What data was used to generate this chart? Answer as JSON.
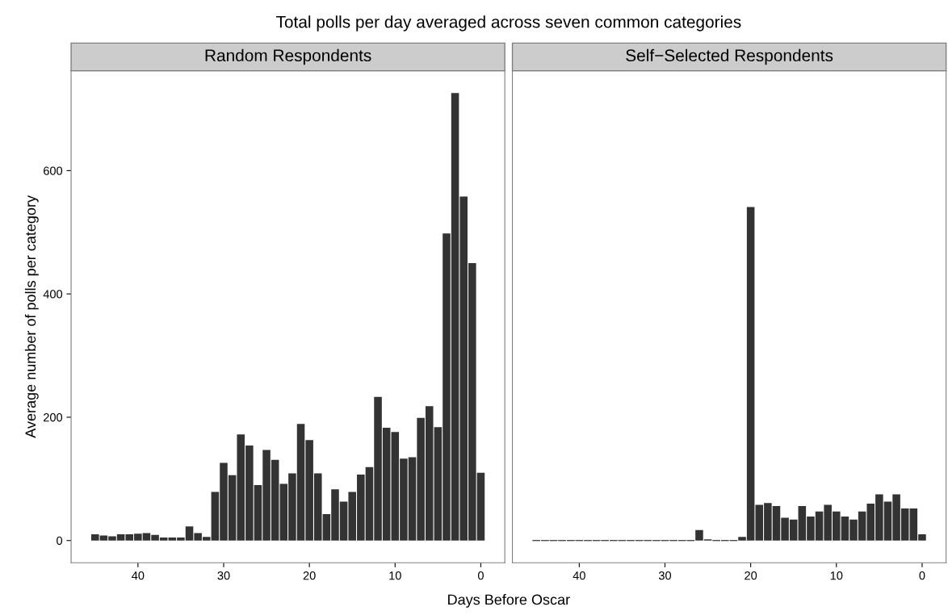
{
  "chart_data": [
    {
      "type": "bar",
      "title": "Random Respondents",
      "annotations": [
        "Total polls per day averaged across seven common categories"
      ],
      "xlabel": "Days Before Oscar",
      "ylabel": "Average number of polls per category",
      "x": [
        45,
        44,
        43,
        42,
        41,
        40,
        39,
        38,
        37,
        36,
        35,
        34,
        33,
        32,
        31,
        30,
        29,
        28,
        27,
        26,
        25,
        24,
        23,
        22,
        21,
        20,
        19,
        18,
        17,
        16,
        15,
        14,
        13,
        12,
        11,
        10,
        9,
        8,
        7,
        6,
        5,
        4,
        3,
        2,
        1,
        0
      ],
      "series": [
        {
          "color": "#333333",
          "values": [
            10,
            8,
            7,
            10,
            10,
            11,
            12,
            9,
            5,
            5,
            5,
            23,
            12,
            6,
            79,
            126,
            106,
            172,
            154,
            90,
            147,
            131,
            92,
            109,
            189,
            163,
            109,
            43,
            83,
            63,
            79,
            107,
            119,
            233,
            183,
            176,
            133,
            135,
            199,
            218,
            184,
            498,
            726,
            558,
            450,
            110
          ]
        }
      ],
      "xlim": [
        47.8,
        -2.8
      ],
      "xticks": [
        40,
        30,
        20,
        10,
        0
      ],
      "ylim": [
        -36,
        762
      ],
      "yticks": [
        0,
        200,
        400,
        600
      ],
      "grid": false
    },
    {
      "type": "bar",
      "title": "Self−Selected Respondents",
      "x": [
        45,
        44,
        43,
        42,
        41,
        40,
        39,
        38,
        37,
        36,
        35,
        34,
        33,
        32,
        31,
        30,
        29,
        28,
        27,
        26,
        25,
        24,
        23,
        22,
        21,
        20,
        19,
        18,
        17,
        16,
        15,
        14,
        13,
        12,
        11,
        10,
        9,
        8,
        7,
        6,
        5,
        4,
        3,
        2,
        1,
        0
      ],
      "series": [
        {
          "color": "#333333",
          "values": [
            0,
            0,
            0,
            0,
            0,
            0,
            0,
            0,
            0,
            0,
            0,
            0,
            0,
            0,
            0,
            0,
            0,
            0,
            0,
            17,
            2,
            0,
            0,
            0,
            6,
            541,
            58,
            61,
            56,
            37,
            34,
            56,
            39,
            47,
            58,
            47,
            39,
            34,
            47,
            60,
            75,
            63,
            75,
            52,
            52,
            10
          ]
        }
      ],
      "xlim": [
        47.8,
        -2.8
      ],
      "xticks": [
        40,
        30,
        20,
        10,
        0
      ],
      "ylim": [
        -36,
        762
      ],
      "yticks": [
        0,
        200,
        400,
        600
      ],
      "tick_labels": "x",
      "grid": false
    }
  ]
}
